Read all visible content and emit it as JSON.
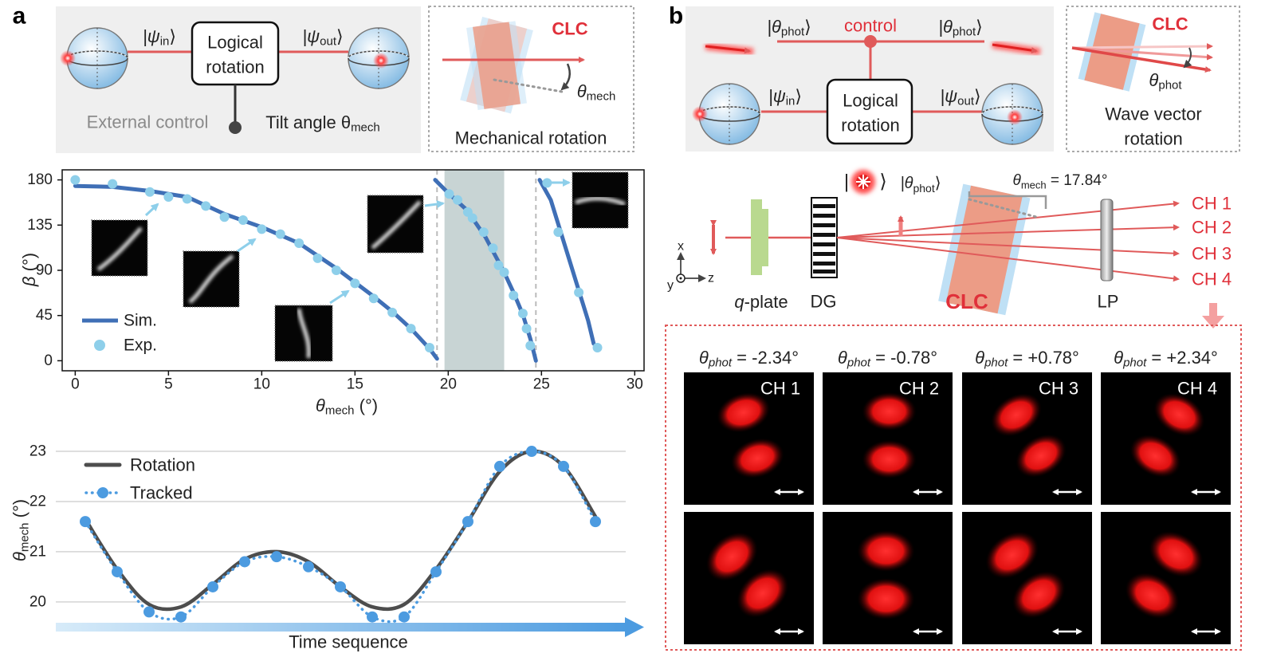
{
  "panel_a": {
    "label": "a",
    "circuit": {
      "input": {
        "pre": "|ψ",
        "sub": "in",
        "post": "⟩"
      },
      "gate": [
        "Logical",
        "rotation"
      ],
      "output": {
        "pre": "|ψ",
        "sub": "out",
        "post": "⟩"
      },
      "external_control": "External control",
      "tilt": {
        "pre": "Tilt angle θ",
        "sub": "mech"
      }
    },
    "mechanical": {
      "clc": "CLC",
      "angle": {
        "pre": "θ",
        "sub": "mech"
      },
      "caption": "Mechanical rotation"
    }
  },
  "chart_data": [
    {
      "type": "line",
      "xlabel": {
        "pre": "θ",
        "sub": "mech",
        "post": " (°)"
      },
      "ylabel": {
        "pre": "β",
        "post": " (°)"
      },
      "xlim": [
        -0.7,
        30.5
      ],
      "ylim": [
        -10,
        190
      ],
      "xticks": [
        0,
        5,
        10,
        15,
        20,
        25,
        30
      ],
      "yticks": [
        0,
        45,
        90,
        135,
        180
      ],
      "legend": "lower left",
      "span": [
        19.8,
        23
      ],
      "span_color": "#c8d4d4",
      "vlines": [
        19.4,
        24.7
      ],
      "series": [
        {
          "name": "Sim.",
          "color": "#3f6fb6",
          "mode": "line",
          "x": [
            0,
            2,
            4,
            6,
            8,
            10,
            12,
            14,
            16,
            17,
            18,
            19,
            19.4,
            null,
            19.3,
            20,
            21,
            22,
            23,
            23.5,
            24,
            24.4,
            24.7,
            null,
            24.9,
            25.5,
            26,
            26.5,
            27,
            27.5,
            27.8
          ],
          "values": [
            174,
            173,
            169,
            163,
            146,
            133,
            117,
            92,
            64,
            49,
            32,
            12,
            2,
            null,
            180,
            167,
            150,
            123,
            88,
            68,
            46,
            22,
            0,
            null,
            180,
            160,
            130,
            100,
            70,
            40,
            17
          ]
        },
        {
          "name": "Exp.",
          "color": "#8ecfea",
          "mode": "markers",
          "x": [
            0,
            2,
            4,
            5,
            6,
            7,
            8,
            9,
            10,
            11,
            12,
            13,
            14,
            15,
            16,
            17,
            18,
            19,
            20.05,
            20.5,
            21.05,
            21.3,
            21.9,
            22.4,
            22.7,
            23,
            23.5,
            24,
            24.2,
            24.4,
            25.3,
            25.9,
            27,
            28
          ],
          "values": [
            180,
            176,
            168,
            163,
            161,
            154,
            143,
            140,
            131,
            126,
            117,
            102,
            90,
            77,
            62,
            48,
            32,
            13,
            166,
            160,
            148,
            142,
            128,
            112,
            95,
            88,
            65,
            47,
            32,
            15,
            177,
            128,
            68,
            13
          ]
        }
      ]
    },
    {
      "type": "line",
      "xlabel": "Time sequence",
      "ylabel": {
        "pre": "θ",
        "sub": "mech",
        "post": " (°)"
      },
      "ylim": [
        19.6,
        23.35
      ],
      "yticks": [
        20,
        21,
        22,
        23
      ],
      "grid": true,
      "legend": "upper left",
      "series": [
        {
          "name": "Rotation",
          "color": "#4d4d4d",
          "style": "solid",
          "markers": false,
          "values": [
            21.65,
            20.65,
            19.95,
            19.9,
            20.35,
            20.85,
            21.0,
            20.8,
            20.3,
            19.9,
            19.95,
            20.65,
            21.6,
            22.6,
            23.0,
            22.7,
            21.7
          ]
        },
        {
          "name": "Tracked",
          "color": "#4c9be0",
          "style": "dotted",
          "markers": true,
          "values": [
            21.6,
            20.6,
            19.8,
            19.7,
            20.3,
            20.8,
            20.9,
            20.7,
            20.3,
            19.7,
            19.7,
            20.6,
            21.6,
            22.7,
            23.0,
            22.7,
            21.6
          ]
        }
      ]
    }
  ],
  "panel_b": {
    "label": "b",
    "circuit": {
      "control_in": {
        "pre": "|θ",
        "sub": "phot",
        "post": "⟩"
      },
      "control": "control",
      "control_out": {
        "pre": "|θ",
        "sub": "phot",
        "post": "⟩"
      },
      "input": {
        "pre": "|ψ",
        "sub": "in",
        "post": "⟩"
      },
      "gate": [
        "Logical",
        "rotation"
      ],
      "output": {
        "pre": "|ψ",
        "sub": "out",
        "post": "⟩"
      }
    },
    "wave": {
      "clc": "CLC",
      "angle": {
        "pre": "θ",
        "sub": "phot"
      },
      "caption": [
        "Wave vector",
        "rotation"
      ]
    },
    "setup": {
      "axes": [
        "x",
        "y",
        "z"
      ],
      "ket": {
        "open": "|",
        "close": "⟩",
        "phot": {
          "pre": "|θ",
          "sub": "phot",
          "post": "⟩"
        }
      },
      "mech": {
        "pre": "θ",
        "sub": "mech",
        "post": " = 17.84°"
      },
      "components": {
        "qplate": {
          "pre": "q",
          "post": "-plate"
        },
        "dg": "DG",
        "clc": "CLC",
        "lp": "LP"
      },
      "channels": [
        "CH 1",
        "CH 2",
        "CH 3",
        "CH 4"
      ]
    },
    "images": {
      "titles": [
        {
          "pre": "θ",
          "sub": "phot",
          "post": " = -2.34°"
        },
        {
          "pre": "θ",
          "sub": "phot",
          "post": " = -0.78°"
        },
        {
          "pre": "θ",
          "sub": "phot",
          "post": " = +0.78°"
        },
        {
          "pre": "θ",
          "sub": "phot",
          "post": " = +2.34°"
        }
      ]
    }
  }
}
